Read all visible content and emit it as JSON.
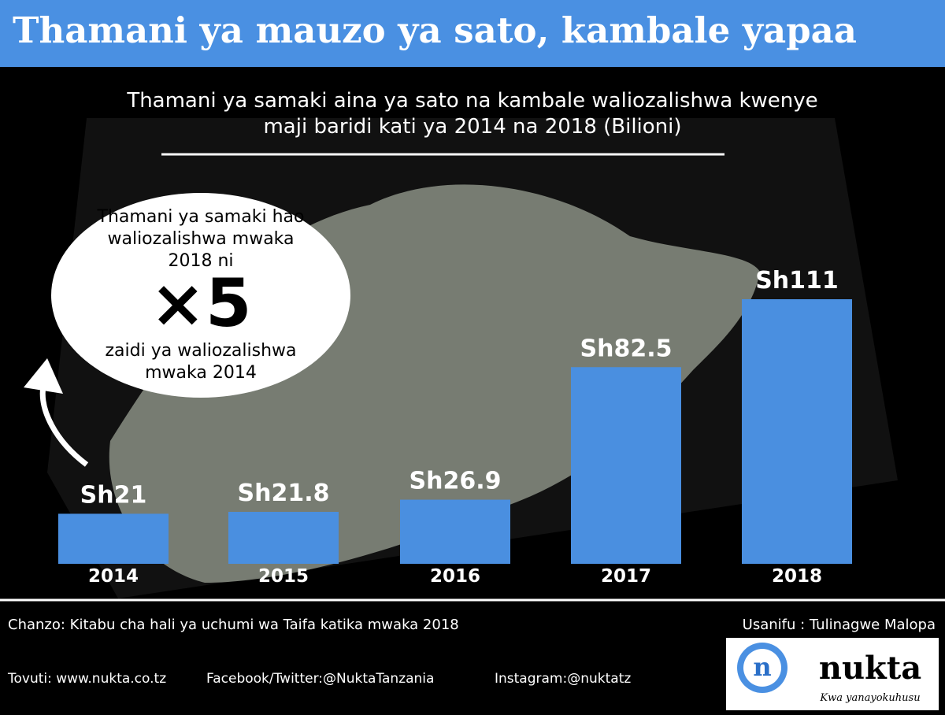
{
  "header": {
    "title": "Thamani ya mauzo ya sato, kambale yapaa"
  },
  "chart_data": {
    "type": "bar",
    "title": "Thamani ya samaki aina ya sato na kambale waliozalishwa kwenye maji baridi kati ya 2014 na 2018 (Bilioni)",
    "categories": [
      "2014",
      "2015",
      "2016",
      "2017",
      "2018"
    ],
    "values": [
      21,
      21.8,
      26.9,
      82.5,
      111
    ],
    "value_labels": [
      "Sh21",
      "Sh21.8",
      "Sh26.9",
      "Sh82.5",
      "Sh111"
    ],
    "color": "#4a8fe0"
  },
  "callout": {
    "text_top": "Thamani ya samaki hao waliozalishwa mwaka 2018 ni",
    "multiplier": "×5",
    "text_bottom": "zaidi ya waliozalishwa mwaka 2014"
  },
  "footer": {
    "source": "Chanzo:  Kitabu cha hali ya uchumi wa Taifa katika mwaka 2018",
    "designer": "Usanifu : Tulinagwe Malopa",
    "website": "Tovuti: www.nukta.co.tz",
    "social": "Facebook/Twitter:@NuktaTanzania",
    "instagram": "Instagram:@nuktatz",
    "logo_letter": "n",
    "logo_name": "nukta",
    "logo_tagline": "Kwa yanayokuhusu"
  }
}
